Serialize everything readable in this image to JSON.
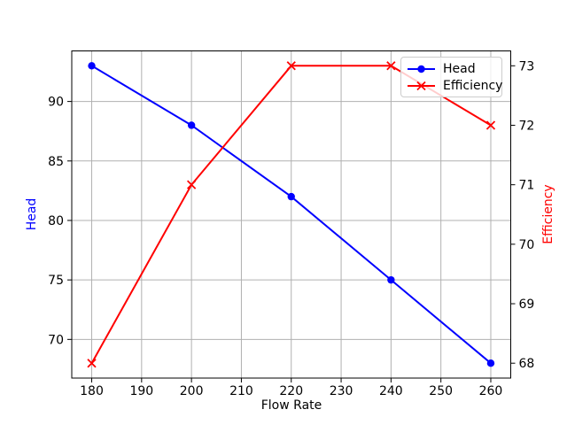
{
  "figure": {
    "background": "#ffffff"
  },
  "chart_data": {
    "type": "line",
    "title": "",
    "xlabel": "Flow Rate",
    "ylabel_left": "Head",
    "ylabel_right": "Efficiency",
    "x": [
      180,
      200,
      220,
      240,
      260
    ],
    "series": [
      {
        "name": "Head",
        "axis": "left",
        "color": "#0000ff",
        "marker": "circle",
        "values": [
          93,
          88,
          82,
          75,
          68
        ]
      },
      {
        "name": "Efficiency",
        "axis": "right",
        "color": "#ff0000",
        "marker": "x",
        "values": [
          68,
          71,
          73,
          73,
          72
        ]
      }
    ],
    "xticks": [
      180,
      190,
      200,
      210,
      220,
      230,
      240,
      250,
      260
    ],
    "yticks_left": [
      70,
      75,
      80,
      85,
      90
    ],
    "yticks_right": [
      68,
      69,
      70,
      71,
      72,
      73
    ],
    "xlim": [
      176,
      264
    ],
    "ylim_left": [
      66.75,
      94.25
    ],
    "ylim_right": [
      67.75,
      73.25
    ],
    "grid": true,
    "legend_position": "upper right",
    "colors": {
      "grid": "#b0b0b0",
      "spine": "#000000",
      "tick_label": "#000000",
      "legend_border": "#cccccc"
    }
  }
}
